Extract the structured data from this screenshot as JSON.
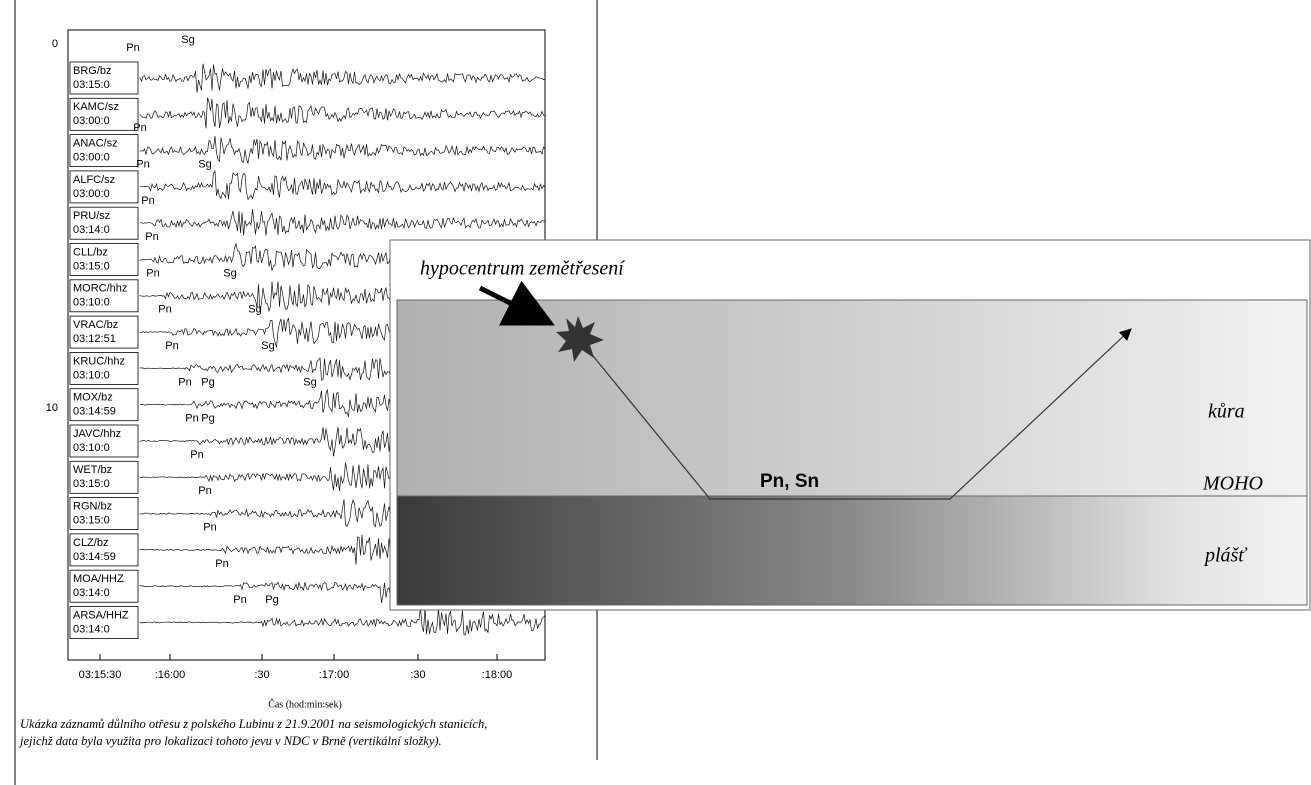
{
  "seismogram": {
    "y_labels": [
      "0",
      "10"
    ],
    "stations": [
      {
        "name": "BRG/bz",
        "time": "03:15:0",
        "phases": [
          "Pn",
          "Sg"
        ]
      },
      {
        "name": "KAMC/sz",
        "time": "03:00:0",
        "phases": [
          "Pn"
        ]
      },
      {
        "name": "ANAC/sz",
        "time": "03:00:0",
        "phases": [
          "Pn",
          "Sg"
        ]
      },
      {
        "name": "ALFC/sz",
        "time": "03:00:0",
        "phases": [
          "Pn"
        ]
      },
      {
        "name": "PRU/sz",
        "time": "03:14:0",
        "phases": [
          "Pn"
        ]
      },
      {
        "name": "CLL/bz",
        "time": "03:15:0",
        "phases": [
          "Pn",
          "Sg"
        ]
      },
      {
        "name": "MORC/hhz",
        "time": "03:10:0",
        "phases": [
          "Pn",
          "Sg"
        ]
      },
      {
        "name": "VRAC/bz",
        "time": "03:12:51",
        "phases": [
          "Pn",
          "Sg"
        ]
      },
      {
        "name": "KRUC/hhz",
        "time": "03:10:0",
        "phases": [
          "Pn",
          "Pg",
          "Sg"
        ]
      },
      {
        "name": "MOX/bz",
        "time": "03:14:59",
        "phases": [
          "Pn",
          "Pg"
        ]
      },
      {
        "name": "JAVC/hhz",
        "time": "03:10:0",
        "phases": [
          "Pn"
        ]
      },
      {
        "name": "WET/bz",
        "time": "03:15:0",
        "phases": [
          "Pn"
        ]
      },
      {
        "name": "RGN/bz",
        "time": "03:15:0",
        "phases": [
          "Pn"
        ]
      },
      {
        "name": "CLZ/bz",
        "time": "03:14:59",
        "phases": [
          "Pn"
        ]
      },
      {
        "name": "MOA/HHZ",
        "time": "03:14:0",
        "phases": [
          "Pn",
          "Pg"
        ]
      },
      {
        "name": "ARSA/HHZ",
        "time": "03:14:0",
        "phases": []
      }
    ],
    "x_ticks": [
      "03:15:30",
      ":16:00",
      ":30",
      ":17:00",
      ":30",
      ":18:00"
    ],
    "x_label": "Čas (hod:min:sek)",
    "caption": [
      "Ukázka záznamů důlního otřesu z polského Lubinu z 21.9.2001 na seismologických stanicích,",
      "jejichž data byla využita pro lokalizaci tohoto jevu v NDC v Brně (vertikální složky)."
    ]
  },
  "diagram": {
    "title": "hypocentrum zemětřesení",
    "ray_label": "Pn, Sn",
    "crust": "kůra",
    "boundary": "MOHO",
    "mantle": "plášť"
  }
}
